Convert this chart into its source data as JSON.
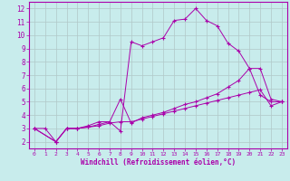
{
  "background_color": "#c8ecec",
  "grid_color": "#b0c8c8",
  "line_color": "#aa00aa",
  "xlabel": "Windchill (Refroidissement éolien,°C)",
  "xlim": [
    -0.5,
    23.5
  ],
  "ylim": [
    1.5,
    12.5
  ],
  "xticks": [
    0,
    1,
    2,
    3,
    4,
    5,
    6,
    7,
    8,
    9,
    10,
    11,
    12,
    13,
    14,
    15,
    16,
    17,
    18,
    19,
    20,
    21,
    22,
    23
  ],
  "yticks": [
    2,
    3,
    4,
    5,
    6,
    7,
    8,
    9,
    10,
    11,
    12
  ],
  "line1_x": [
    0,
    1,
    2,
    3,
    4,
    5,
    6,
    7,
    8,
    9,
    10,
    11,
    12,
    13,
    14,
    15,
    16,
    17,
    18,
    19,
    20,
    21,
    22,
    23
  ],
  "line1_y": [
    3.0,
    3.0,
    2.0,
    3.0,
    3.0,
    3.2,
    3.5,
    3.5,
    2.8,
    9.5,
    9.2,
    9.5,
    9.8,
    11.1,
    11.2,
    12.0,
    11.1,
    10.7,
    9.4,
    8.8,
    7.5,
    5.5,
    5.0,
    5.0
  ],
  "line2_x": [
    0,
    2,
    3,
    4,
    5,
    6,
    7,
    8,
    9,
    10,
    11,
    12,
    13,
    14,
    15,
    16,
    17,
    18,
    19,
    20,
    21,
    22,
    23
  ],
  "line2_y": [
    3.0,
    2.0,
    3.0,
    3.0,
    3.1,
    3.3,
    3.5,
    5.2,
    3.4,
    3.8,
    4.0,
    4.2,
    4.5,
    4.8,
    5.0,
    5.3,
    5.6,
    6.1,
    6.6,
    7.5,
    7.5,
    5.2,
    5.0
  ],
  "line3_x": [
    0,
    2,
    3,
    4,
    5,
    6,
    7,
    8,
    9,
    10,
    11,
    12,
    13,
    14,
    15,
    16,
    17,
    18,
    19,
    20,
    21,
    22,
    23
  ],
  "line3_y": [
    3.0,
    2.0,
    3.0,
    3.0,
    3.1,
    3.2,
    3.4,
    3.5,
    3.5,
    3.7,
    3.9,
    4.1,
    4.3,
    4.5,
    4.7,
    4.9,
    5.1,
    5.3,
    5.5,
    5.7,
    5.9,
    4.7,
    5.0
  ]
}
